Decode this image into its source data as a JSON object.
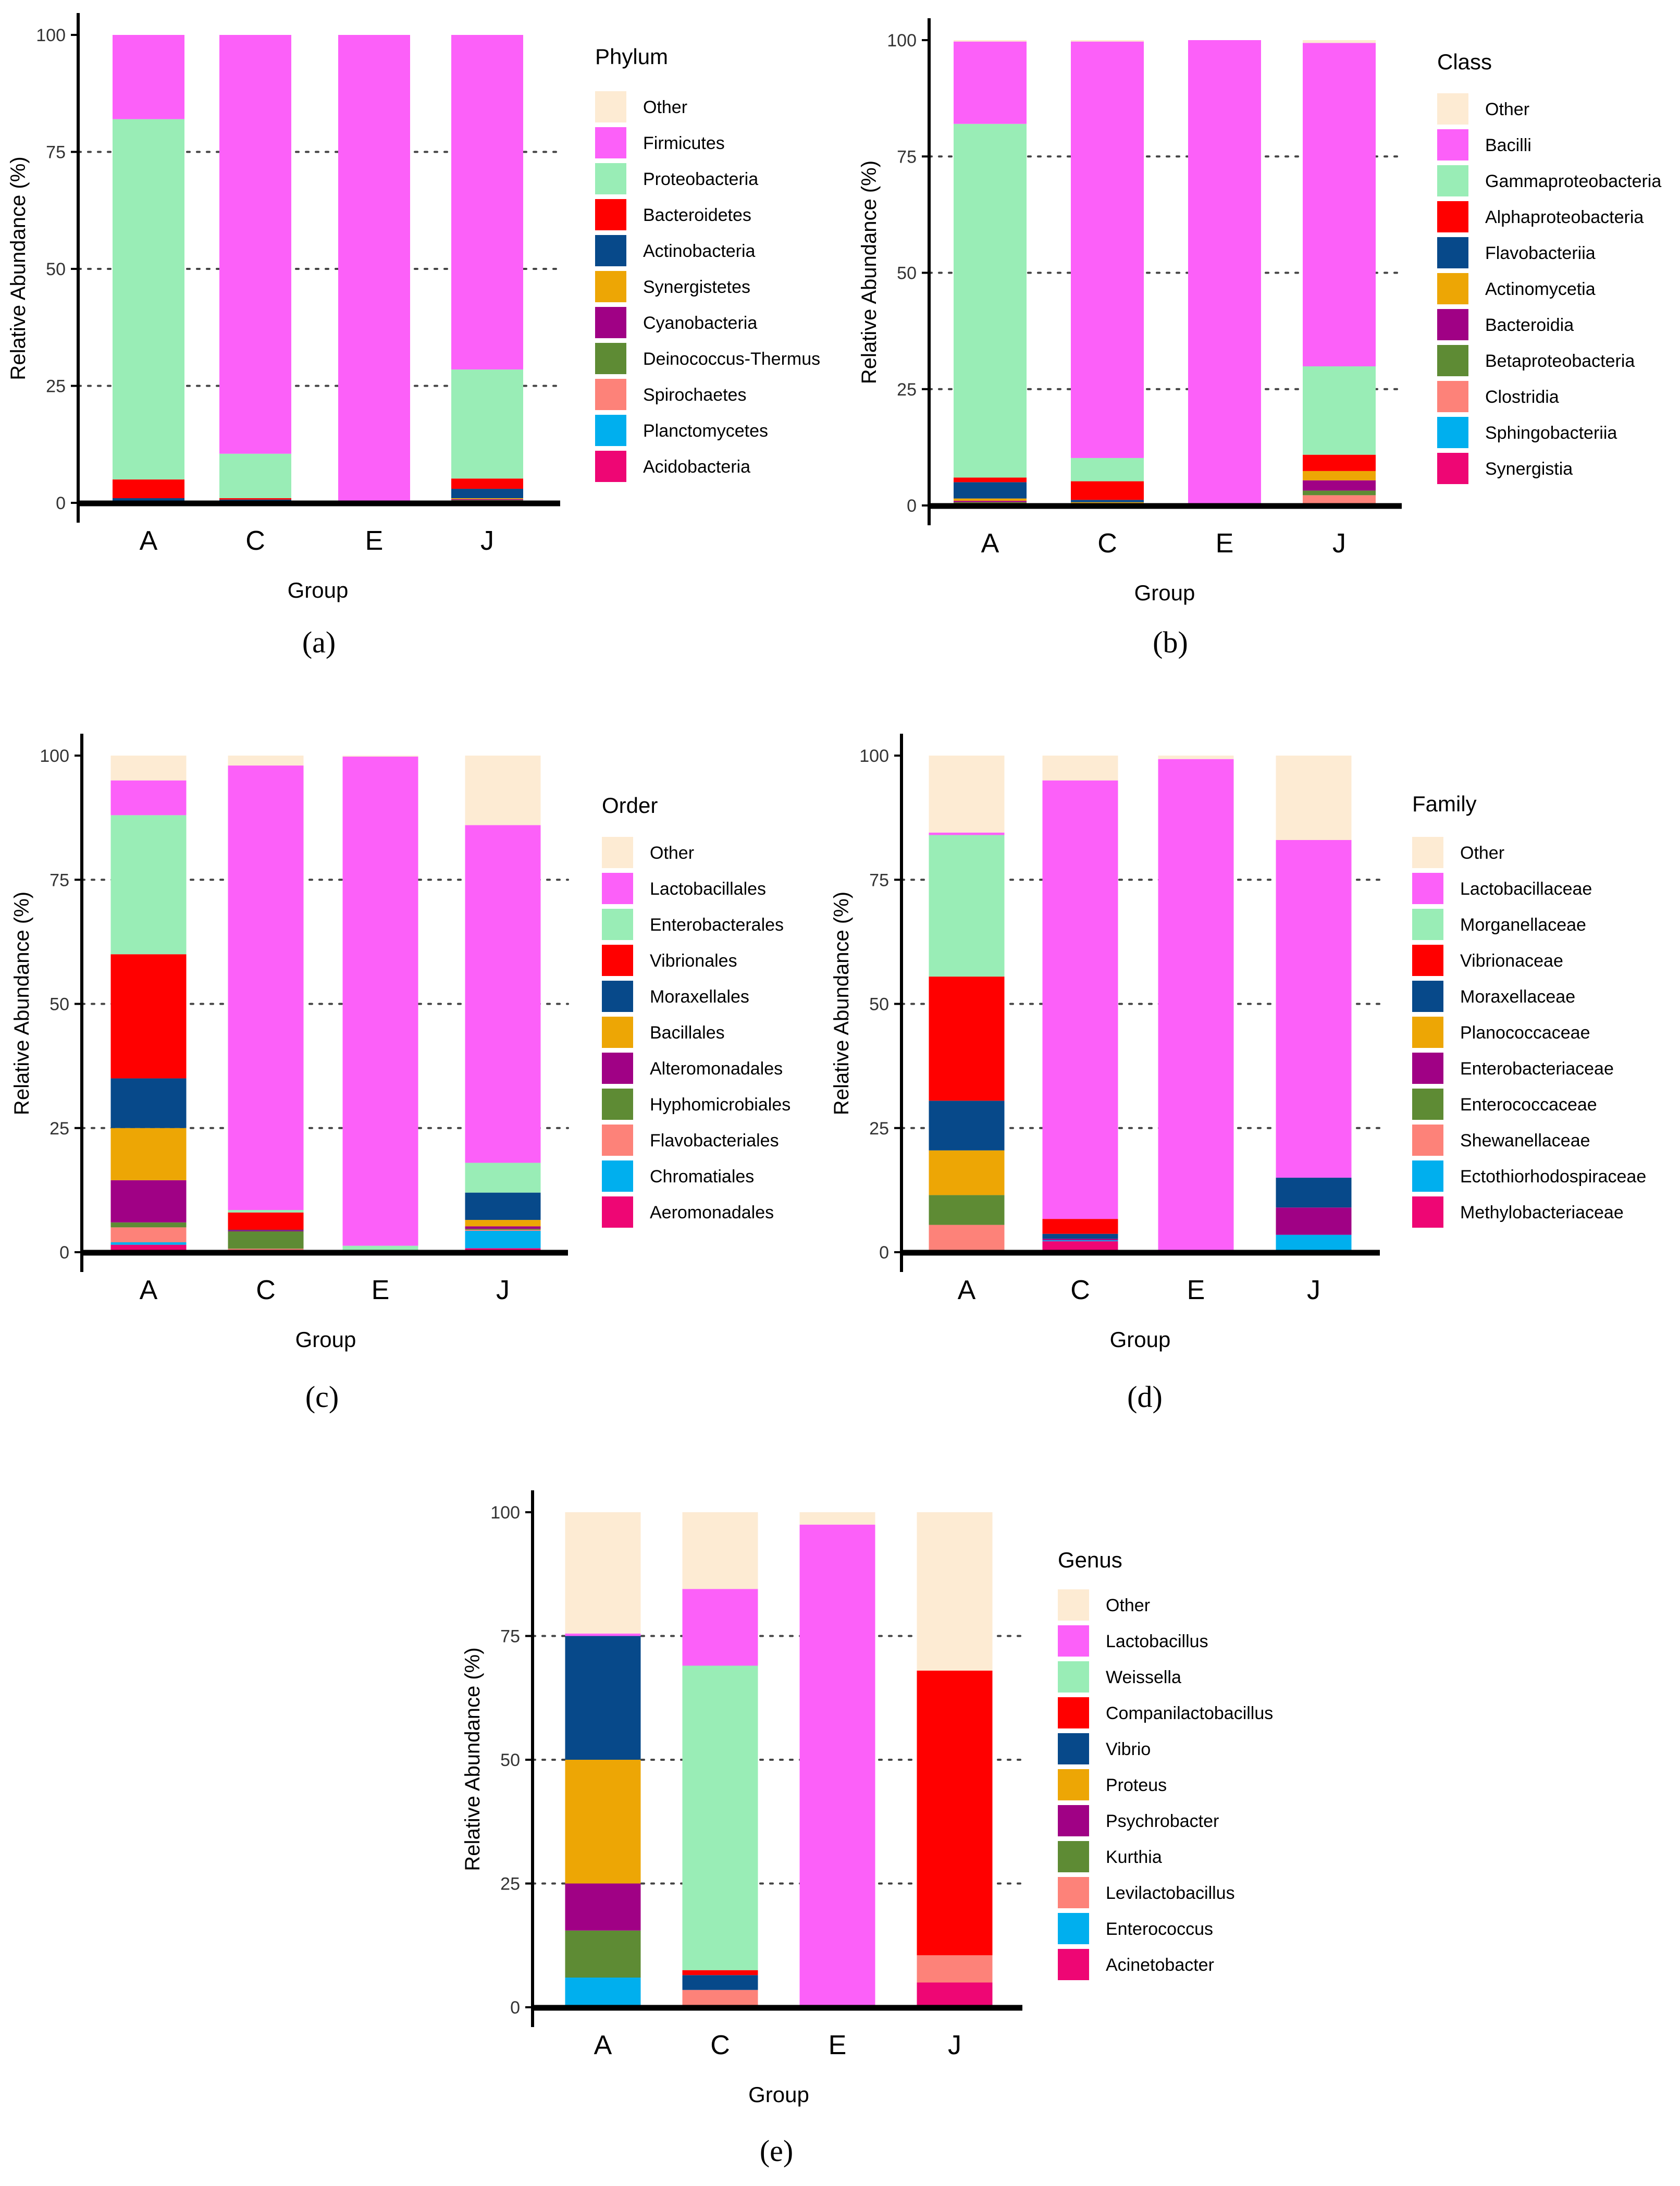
{
  "figure": {
    "colors": {
      "Other": "#FDEBD3",
      "Pink": "#FC60F9",
      "Mint": "#99EDB6",
      "Red": "#FF0000",
      "Navy": "#07498A",
      "Orange": "#EDA605",
      "Purple": "#A00185",
      "Olive": "#5E8B34",
      "Salmon": "#FD8279",
      "Cyan": "#00AFEE",
      "Magenta": "#EE0674"
    }
  },
  "chart_data": [
    {
      "type": "bar",
      "stacked": true,
      "panel": "(a)",
      "xlabel": "Group",
      "ylabel": "Relative Abundance (%)",
      "ylim": [
        0,
        100
      ],
      "yticks": [
        0,
        25,
        50,
        75,
        100
      ],
      "grid": "dotted at 25, 50, 75",
      "legend_title": "Phylum",
      "legend_position": "right",
      "categories": [
        "A",
        "C",
        "E",
        "J"
      ],
      "series": [
        {
          "name": "Other",
          "color": "#FDEBD3",
          "values": [
            0,
            0,
            0,
            0
          ]
        },
        {
          "name": "Firmicutes",
          "color": "#FC60F9",
          "values": [
            18,
            89.5,
            99.5,
            71.5
          ]
        },
        {
          "name": "Proteobacteria",
          "color": "#99EDB6",
          "values": [
            77,
            9.5,
            0.2,
            23.3
          ]
        },
        {
          "name": "Bacteroidetes",
          "color": "#FF0000",
          "values": [
            4,
            0.3,
            0.1,
            2.2
          ]
        },
        {
          "name": "Actinobacteria",
          "color": "#07498A",
          "values": [
            0.5,
            0.2,
            0.1,
            2
          ]
        },
        {
          "name": "Synergistetes",
          "color": "#EDA605",
          "values": [
            0.2,
            0.2,
            0.1,
            0.2
          ]
        },
        {
          "name": "Cyanobacteria",
          "color": "#A00185",
          "values": [
            0.1,
            0.1,
            0,
            0.2
          ]
        },
        {
          "name": "Deinococcus-Thermus",
          "color": "#5E8B34",
          "values": [
            0.1,
            0.1,
            0,
            0.1
          ]
        },
        {
          "name": "Spirochaetes",
          "color": "#FD8279",
          "values": [
            0.1,
            0.1,
            0,
            0.1
          ]
        },
        {
          "name": "Planctomycetes",
          "color": "#00AFEE",
          "values": [
            0,
            0,
            0,
            0.2
          ]
        },
        {
          "name": "Acidobacteria",
          "color": "#EE0674",
          "values": [
            0,
            0,
            0,
            0.2
          ]
        }
      ]
    },
    {
      "type": "bar",
      "stacked": true,
      "panel": "(b)",
      "xlabel": "Group",
      "ylabel": "Relative Abundance (%)",
      "ylim": [
        0,
        100
      ],
      "yticks": [
        0,
        25,
        50,
        75,
        100
      ],
      "grid": "dotted at 25, 50, 75",
      "legend_title": "Class",
      "legend_position": "right",
      "categories": [
        "A",
        "C",
        "E",
        "J"
      ],
      "series": [
        {
          "name": "Other",
          "color": "#FDEBD3",
          "values": [
            0.3,
            0.3,
            0,
            0.6
          ]
        },
        {
          "name": "Bacilli",
          "color": "#FC60F9",
          "values": [
            17.7,
            89.5,
            99.6,
            69.5
          ]
        },
        {
          "name": "Gammaproteobacteria",
          "color": "#99EDB6",
          "values": [
            76,
            5,
            0.2,
            19
          ]
        },
        {
          "name": "Alphaproteobacteria",
          "color": "#FF0000",
          "values": [
            1,
            4,
            0.1,
            3.5
          ]
        },
        {
          "name": "Flavobacteriia",
          "color": "#07498A",
          "values": [
            3.5,
            0.5,
            0.1,
            0
          ]
        },
        {
          "name": "Actinomycetia",
          "color": "#EDA605",
          "values": [
            0.5,
            0.2,
            0,
            2
          ]
        },
        {
          "name": "Bacteroidia",
          "color": "#A00185",
          "values": [
            0.3,
            0.2,
            0,
            2.2
          ]
        },
        {
          "name": "Betaproteobacteria",
          "color": "#5E8B34",
          "values": [
            0.3,
            0.2,
            0,
            1
          ]
        },
        {
          "name": "Clostridia",
          "color": "#FD8279",
          "values": [
            0.2,
            0.1,
            0,
            2
          ]
        },
        {
          "name": "Sphingobacteriia",
          "color": "#00AFEE",
          "values": [
            0.1,
            0,
            0,
            0.1
          ]
        },
        {
          "name": "Synergistia",
          "color": "#EE0674",
          "values": [
            0.1,
            0,
            0,
            0.1
          ]
        }
      ]
    },
    {
      "type": "bar",
      "stacked": true,
      "panel": "(c)",
      "xlabel": "Group",
      "ylabel": "Relative Abundance (%)",
      "ylim": [
        0,
        100
      ],
      "yticks": [
        0,
        25,
        50,
        75,
        100
      ],
      "grid": "dotted at 25, 50, 75",
      "legend_title": "Order",
      "legend_position": "right",
      "categories": [
        "A",
        "C",
        "E",
        "J"
      ],
      "series": [
        {
          "name": "Other",
          "color": "#FDEBD3",
          "values": [
            5,
            2,
            0.2,
            14
          ]
        },
        {
          "name": "Lactobacillales",
          "color": "#FC60F9",
          "values": [
            7,
            89.5,
            98.5,
            68
          ]
        },
        {
          "name": "Enterobacterales",
          "color": "#99EDB6",
          "values": [
            28,
            0.5,
            1,
            6
          ]
        },
        {
          "name": "Vibrionales",
          "color": "#FF0000",
          "values": [
            25,
            3.5,
            0,
            0
          ]
        },
        {
          "name": "Moraxellales",
          "color": "#07498A",
          "values": [
            10,
            0.1,
            0.1,
            5.5
          ]
        },
        {
          "name": "Bacillales",
          "color": "#EDA605",
          "values": [
            10.5,
            0,
            0.1,
            1.3
          ]
        },
        {
          "name": "Alteromonadales",
          "color": "#A00185",
          "values": [
            8.5,
            0.2,
            0,
            0.5
          ]
        },
        {
          "name": "Hyphomicrobiales",
          "color": "#5E8B34",
          "values": [
            1,
            3.5,
            0.1,
            0.2
          ]
        },
        {
          "name": "Flavobacteriales",
          "color": "#FD8279",
          "values": [
            3,
            0.3,
            0,
            0.2
          ]
        },
        {
          "name": "Chromatiales",
          "color": "#00AFEE",
          "values": [
            0.5,
            0.2,
            0,
            3.5
          ]
        },
        {
          "name": "Aeromonadales",
          "color": "#EE0674",
          "values": [
            1.5,
            0.2,
            0,
            0.8
          ]
        }
      ]
    },
    {
      "type": "bar",
      "stacked": true,
      "panel": "(d)",
      "xlabel": "Group",
      "ylabel": "Relative Abundance (%)",
      "ylim": [
        0,
        100
      ],
      "yticks": [
        0,
        25,
        50,
        75,
        100
      ],
      "grid": "dotted at 25, 50, 75",
      "legend_title": "Family",
      "legend_position": "right",
      "categories": [
        "A",
        "C",
        "E",
        "J"
      ],
      "series": [
        {
          "name": "Other",
          "color": "#FDEBD3",
          "values": [
            15.5,
            5,
            0.7,
            17
          ]
        },
        {
          "name": "Lactobacillaceae",
          "color": "#FC60F9",
          "values": [
            0.5,
            88.3,
            99,
            68
          ]
        },
        {
          "name": "Morganellaceae",
          "color": "#99EDB6",
          "values": [
            28.5,
            0,
            0,
            0
          ]
        },
        {
          "name": "Vibrionaceae",
          "color": "#FF0000",
          "values": [
            25,
            3,
            0,
            0
          ]
        },
        {
          "name": "Moraxellaceae",
          "color": "#07498A",
          "values": [
            10,
            1,
            0.1,
            6
          ]
        },
        {
          "name": "Planococcaceae",
          "color": "#EDA605",
          "values": [
            9,
            0,
            0,
            0
          ]
        },
        {
          "name": "Enterobacteriaceae",
          "color": "#A00185",
          "values": [
            0,
            0.3,
            0,
            5.5
          ]
        },
        {
          "name": "Enterococcaceae",
          "color": "#5E8B34",
          "values": [
            6,
            0,
            0.1,
            0
          ]
        },
        {
          "name": "Shewanellaceae",
          "color": "#FD8279",
          "values": [
            5.5,
            0,
            0,
            0
          ]
        },
        {
          "name": "Ectothiorhodospiraceae",
          "color": "#00AFEE",
          "values": [
            0,
            0.2,
            0,
            3.5
          ]
        },
        {
          "name": "Methylobacteriaceae",
          "color": "#EE0674",
          "values": [
            0,
            2.2,
            0.1,
            0
          ]
        }
      ]
    },
    {
      "type": "bar",
      "stacked": true,
      "panel": "(e)",
      "xlabel": "Group",
      "ylabel": "Relative Abundance (%)",
      "ylim": [
        0,
        100
      ],
      "yticks": [
        0,
        25,
        50,
        75,
        100
      ],
      "grid": "dotted at 25, 50, 75",
      "legend_title": "Genus",
      "legend_position": "right",
      "categories": [
        "A",
        "C",
        "E",
        "J"
      ],
      "series": [
        {
          "name": "Other",
          "color": "#FDEBD3",
          "values": [
            24.5,
            15.5,
            2.5,
            32
          ]
        },
        {
          "name": "Lactobacillus",
          "color": "#FC60F9",
          "values": [
            0.5,
            15.5,
            97.5,
            0
          ]
        },
        {
          "name": "Weissella",
          "color": "#99EDB6",
          "values": [
            0,
            61.5,
            0,
            0
          ]
        },
        {
          "name": "Companilactobacillus",
          "color": "#FF0000",
          "values": [
            0,
            1,
            0,
            57.5
          ]
        },
        {
          "name": "Vibrio",
          "color": "#07498A",
          "values": [
            25,
            3,
            0,
            0
          ]
        },
        {
          "name": "Proteus",
          "color": "#EDA605",
          "values": [
            25,
            0,
            0,
            0
          ]
        },
        {
          "name": "Psychrobacter",
          "color": "#A00185",
          "values": [
            9.5,
            0,
            0,
            0
          ]
        },
        {
          "name": "Kurthia",
          "color": "#5E8B34",
          "values": [
            9.5,
            0,
            0,
            0
          ]
        },
        {
          "name": "Levilactobacillus",
          "color": "#FD8279",
          "values": [
            0,
            3.5,
            0,
            5.5
          ]
        },
        {
          "name": "Enterococcus",
          "color": "#00AFEE",
          "values": [
            6,
            0,
            0,
            0
          ]
        },
        {
          "name": "Acinetobacter",
          "color": "#EE0674",
          "values": [
            0,
            0,
            0,
            5
          ]
        }
      ]
    }
  ]
}
